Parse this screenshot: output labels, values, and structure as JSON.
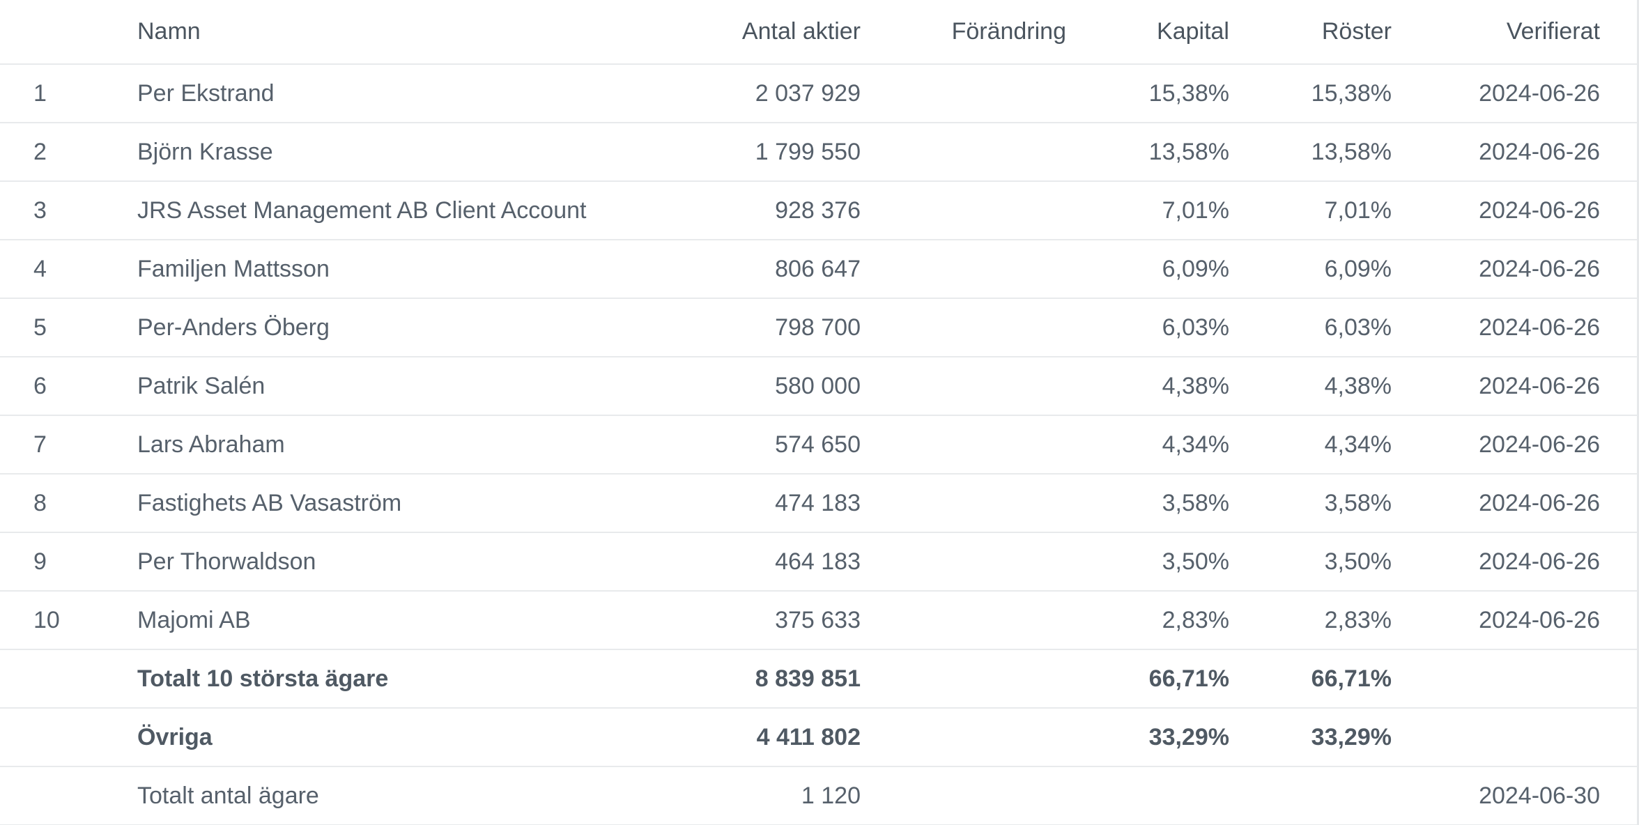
{
  "table": {
    "headers": {
      "name": "Namn",
      "shares": "Antal aktier",
      "change": "Förändring",
      "capital": "Kapital",
      "votes": "Röster",
      "verified": "Verifierat"
    },
    "rows": [
      {
        "rank": "1",
        "name": "Per Ekstrand",
        "shares": "2 037 929",
        "change": "",
        "capital": "15,38%",
        "votes": "15,38%",
        "verified": "2024-06-26"
      },
      {
        "rank": "2",
        "name": "Björn Krasse",
        "shares": "1 799 550",
        "change": "",
        "capital": "13,58%",
        "votes": "13,58%",
        "verified": "2024-06-26"
      },
      {
        "rank": "3",
        "name": "JRS Asset Management AB Client Account",
        "shares": "928 376",
        "change": "",
        "capital": "7,01%",
        "votes": "7,01%",
        "verified": "2024-06-26"
      },
      {
        "rank": "4",
        "name": "Familjen Mattsson",
        "shares": "806 647",
        "change": "",
        "capital": "6,09%",
        "votes": "6,09%",
        "verified": "2024-06-26"
      },
      {
        "rank": "5",
        "name": "Per-Anders Öberg",
        "shares": "798 700",
        "change": "",
        "capital": "6,03%",
        "votes": "6,03%",
        "verified": "2024-06-26"
      },
      {
        "rank": "6",
        "name": "Patrik Salén",
        "shares": "580 000",
        "change": "",
        "capital": "4,38%",
        "votes": "4,38%",
        "verified": "2024-06-26"
      },
      {
        "rank": "7",
        "name": "Lars Abraham",
        "shares": "574 650",
        "change": "",
        "capital": "4,34%",
        "votes": "4,34%",
        "verified": "2024-06-26"
      },
      {
        "rank": "8",
        "name": "Fastighets AB Vasaström",
        "shares": "474 183",
        "change": "",
        "capital": "3,58%",
        "votes": "3,58%",
        "verified": "2024-06-26"
      },
      {
        "rank": "9",
        "name": "Per Thorwaldson",
        "shares": "464 183",
        "change": "",
        "capital": "3,50%",
        "votes": "3,50%",
        "verified": "2024-06-26"
      },
      {
        "rank": "10",
        "name": "Majomi AB",
        "shares": "375 633",
        "change": "",
        "capital": "2,83%",
        "votes": "2,83%",
        "verified": "2024-06-26"
      }
    ],
    "summary": {
      "top10": {
        "name": "Totalt 10 största ägare",
        "shares": "8 839 851",
        "capital": "66,71%",
        "votes": "66,71%"
      },
      "others": {
        "name": "Övriga",
        "shares": "4 411 802",
        "capital": "33,29%",
        "votes": "33,29%"
      },
      "owners": {
        "name": "Totalt antal ägare",
        "shares": "1 120",
        "verified": "2024-06-30"
      }
    }
  }
}
